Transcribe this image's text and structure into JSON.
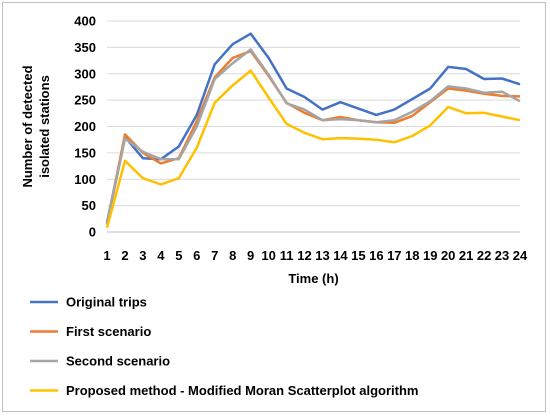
{
  "chart_data": {
    "type": "line",
    "title": "",
    "xlabel": "Time (h)",
    "ylabel": "Number of detected isolated stations",
    "ylim": [
      0,
      400
    ],
    "yticks": [
      0,
      50,
      100,
      150,
      200,
      250,
      300,
      350,
      400
    ],
    "grid": true,
    "legend_position": "bottom",
    "categories": [
      "1",
      "2",
      "3",
      "4",
      "5",
      "6",
      "7",
      "8",
      "9",
      "10",
      "11",
      "12",
      "13",
      "14",
      "15",
      "16",
      "17",
      "18",
      "19",
      "20",
      "21",
      "22",
      "23",
      "24"
    ],
    "series": [
      {
        "name": "Original trips",
        "color": "#4472C4",
        "values": [
          18,
          180,
          140,
          138,
          162,
          222,
          318,
          356,
          376,
          330,
          272,
          256,
          232,
          246,
          234,
          222,
          232,
          252,
          272,
          313,
          309,
          290,
          291,
          280
        ]
      },
      {
        "name": "First scenario",
        "color": "#ED7D31",
        "values": [
          14,
          185,
          150,
          130,
          140,
          210,
          293,
          330,
          343,
          296,
          245,
          226,
          212,
          218,
          212,
          208,
          207,
          220,
          246,
          272,
          268,
          262,
          258,
          257
        ]
      },
      {
        "name": "Second scenario",
        "color": "#A5A5A5",
        "values": [
          16,
          177,
          152,
          138,
          138,
          200,
          290,
          320,
          346,
          298,
          244,
          232,
          212,
          214,
          212,
          208,
          212,
          228,
          248,
          276,
          272,
          264,
          266,
          248
        ]
      },
      {
        "name": "Proposed method - Modified Moran Scatterplot algorithm",
        "color": "#FFC000",
        "values": [
          8,
          135,
          102,
          90,
          102,
          160,
          245,
          278,
          306,
          255,
          205,
          188,
          176,
          178,
          177,
          175,
          170,
          182,
          202,
          237,
          225,
          226,
          219,
          212
        ]
      }
    ]
  }
}
